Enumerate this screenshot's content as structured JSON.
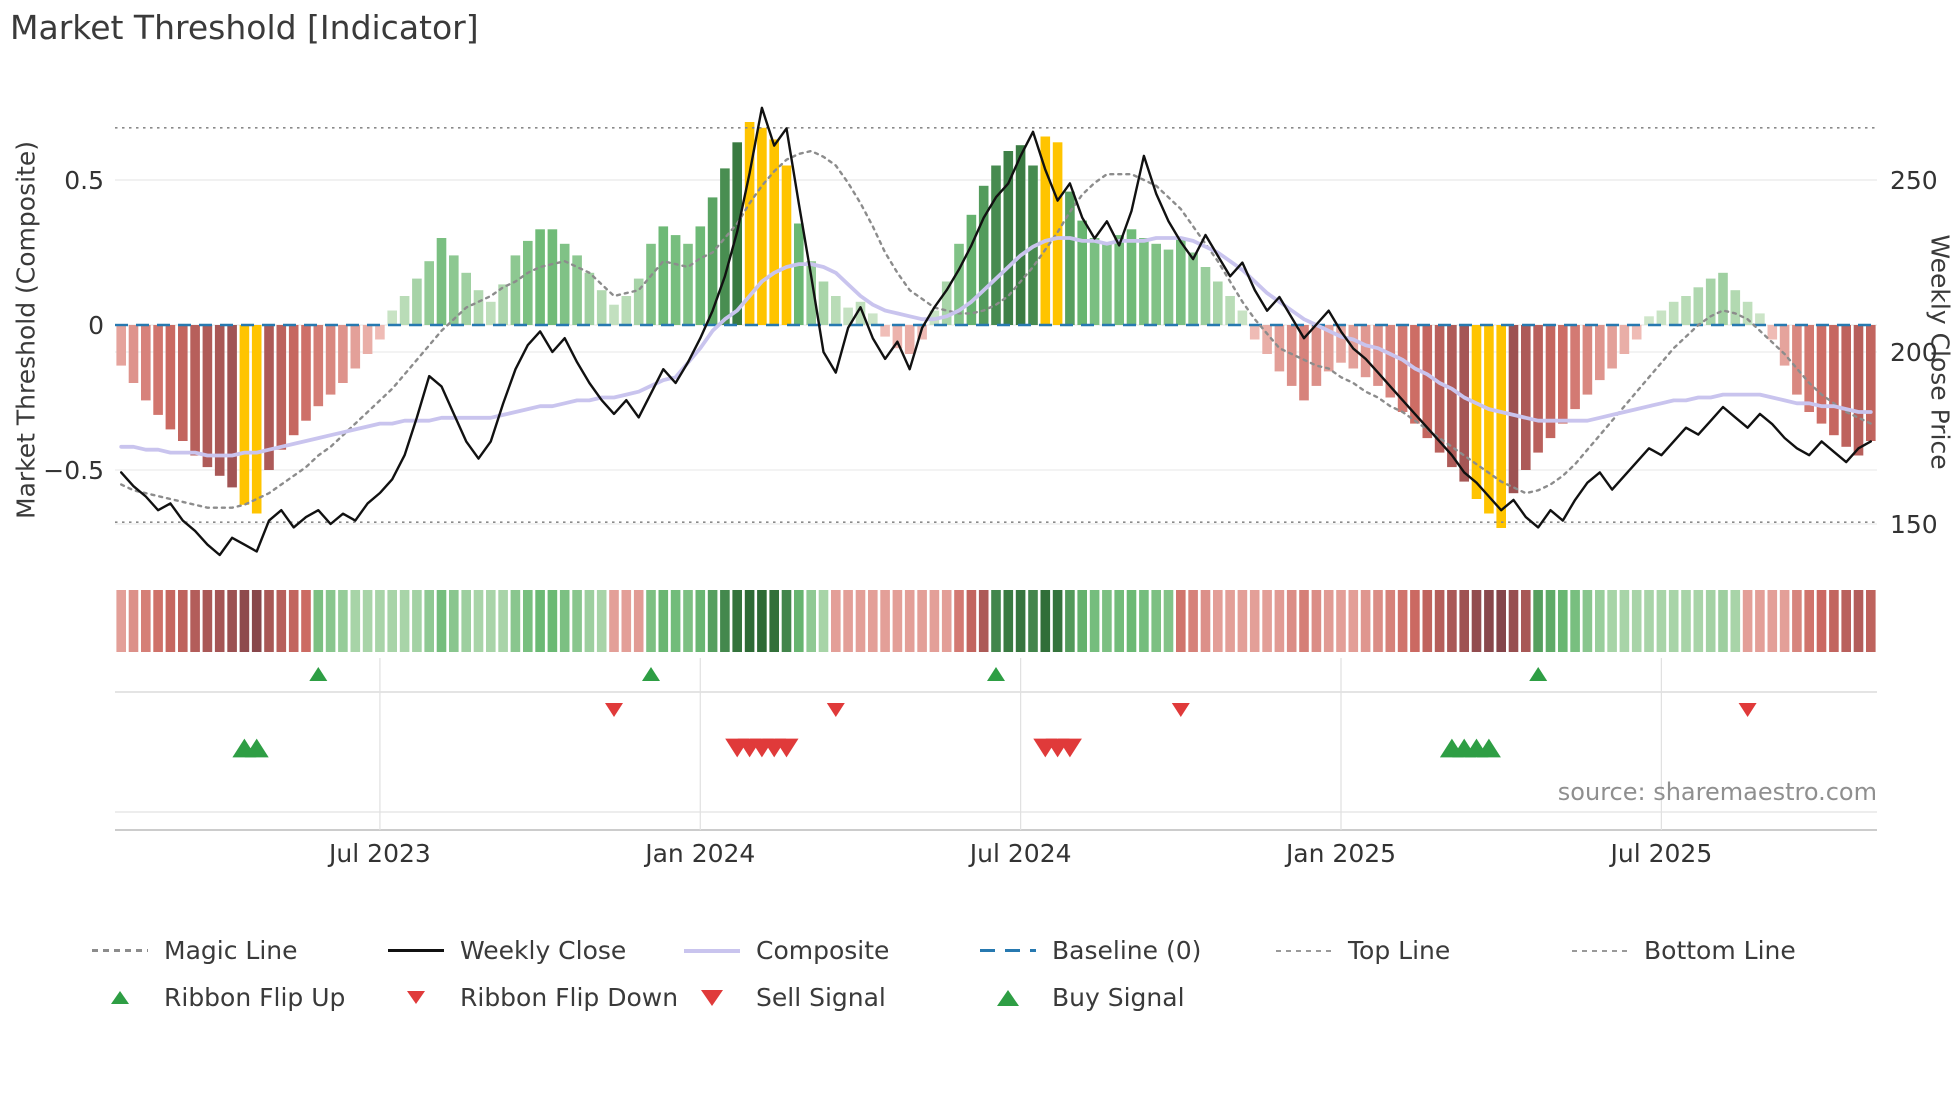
{
  "title": "Market Threshold [Indicator]",
  "source": "source: sharemaestro.com",
  "colors": {
    "bar_green_light": "#d8ead2",
    "bar_green_mid": "#6ab873",
    "bar_green_dark": "#2d6a35",
    "bar_red_light": "#f5c9c3",
    "bar_red_mid": "#cc6a62",
    "bar_red_dark": "#84454a",
    "bar_highlight": "#ffc400",
    "weekly_close": "#111111",
    "composite": "#c9c4ee",
    "magic": "#8c8c8c",
    "baseline": "#2779b0",
    "band_lines": "#8a8a8a",
    "signal_green": "#2e9e44",
    "signal_red": "#e03a3a",
    "grid": "#ececec",
    "axis_text": "#333333"
  },
  "chart_data": {
    "type": "bar",
    "subtype": "indicator histogram with line overlays, color ribbon and signal markers",
    "n_points": 143,
    "axes": {
      "left_title": "Market Threshold (Composite)",
      "right_title": "Weekly Close Price",
      "left_ticks": [
        {
          "label": "0.5",
          "value": 0.5
        },
        {
          "label": "0",
          "value": 0
        },
        {
          "label": "−0.5",
          "value": -0.5
        }
      ],
      "right_ticks": [
        {
          "label": "250",
          "value": 250
        },
        {
          "label": "200",
          "value": 200
        },
        {
          "label": "150",
          "value": 150
        }
      ],
      "x_ticks": [
        {
          "label": "Jul 2023",
          "index": 21
        },
        {
          "label": "Jan 2024",
          "index": 47
        },
        {
          "label": "Jul 2024",
          "index": 73
        },
        {
          "label": "Jan 2025",
          "index": 99
        },
        {
          "label": "Jul 2025",
          "index": 125
        }
      ],
      "left_range": [
        -0.78,
        0.79
      ],
      "right_range": [
        140,
        272
      ]
    },
    "baseline": 0,
    "top_line": 0.68,
    "bottom_line": -0.68,
    "series": {
      "threshold": [
        -0.14,
        -0.2,
        -0.26,
        -0.31,
        -0.36,
        -0.4,
        -0.45,
        -0.49,
        -0.52,
        -0.56,
        -0.62,
        -0.65,
        -0.5,
        -0.43,
        -0.38,
        -0.33,
        -0.28,
        -0.24,
        -0.2,
        -0.15,
        -0.1,
        -0.05,
        0.05,
        0.1,
        0.16,
        0.22,
        0.3,
        0.24,
        0.18,
        0.12,
        0.08,
        0.14,
        0.24,
        0.29,
        0.33,
        0.33,
        0.28,
        0.24,
        0.18,
        0.12,
        0.07,
        0.1,
        0.16,
        0.28,
        0.34,
        0.31,
        0.28,
        0.34,
        0.44,
        0.54,
        0.63,
        0.7,
        0.68,
        0.64,
        0.55,
        0.35,
        0.22,
        0.15,
        0.1,
        0.06,
        0.08,
        0.04,
        -0.04,
        -0.08,
        -0.1,
        -0.05,
        0.05,
        0.15,
        0.28,
        0.38,
        0.48,
        0.55,
        0.6,
        0.62,
        0.55,
        0.65,
        0.63,
        0.46,
        0.36,
        0.3,
        0.28,
        0.31,
        0.33,
        0.3,
        0.28,
        0.26,
        0.3,
        0.25,
        0.2,
        0.15,
        0.1,
        0.05,
        -0.05,
        -0.1,
        -0.16,
        -0.21,
        -0.26,
        -0.21,
        -0.16,
        -0.13,
        -0.15,
        -0.18,
        -0.21,
        -0.25,
        -0.3,
        -0.34,
        -0.39,
        -0.44,
        -0.49,
        -0.54,
        -0.6,
        -0.65,
        -0.7,
        -0.58,
        -0.5,
        -0.44,
        -0.39,
        -0.34,
        -0.29,
        -0.24,
        -0.19,
        -0.15,
        -0.1,
        -0.05,
        0.03,
        0.05,
        0.08,
        0.1,
        0.13,
        0.16,
        0.18,
        0.12,
        0.08,
        0.04,
        -0.05,
        -0.14,
        -0.24,
        -0.3,
        -0.34,
        -0.38,
        -0.42,
        -0.45,
        -0.4
      ],
      "composite": [
        -0.42,
        -0.42,
        -0.43,
        -0.43,
        -0.44,
        -0.44,
        -0.44,
        -0.45,
        -0.45,
        -0.45,
        -0.44,
        -0.44,
        -0.43,
        -0.42,
        -0.41,
        -0.4,
        -0.39,
        -0.38,
        -0.37,
        -0.36,
        -0.35,
        -0.34,
        -0.34,
        -0.33,
        -0.33,
        -0.33,
        -0.32,
        -0.32,
        -0.32,
        -0.32,
        -0.32,
        -0.31,
        -0.3,
        -0.29,
        -0.28,
        -0.28,
        -0.27,
        -0.26,
        -0.26,
        -0.25,
        -0.25,
        -0.24,
        -0.23,
        -0.21,
        -0.19,
        -0.18,
        -0.13,
        -0.08,
        -0.02,
        0.02,
        0.05,
        0.1,
        0.15,
        0.18,
        0.2,
        0.21,
        0.21,
        0.2,
        0.18,
        0.14,
        0.1,
        0.07,
        0.05,
        0.04,
        0.03,
        0.02,
        0.02,
        0.03,
        0.05,
        0.08,
        0.12,
        0.16,
        0.2,
        0.24,
        0.27,
        0.29,
        0.3,
        0.3,
        0.29,
        0.29,
        0.28,
        0.29,
        0.29,
        0.29,
        0.3,
        0.3,
        0.3,
        0.29,
        0.27,
        0.25,
        0.22,
        0.19,
        0.15,
        0.11,
        0.08,
        0.05,
        0.02,
        0.0,
        -0.02,
        -0.04,
        -0.05,
        -0.07,
        -0.08,
        -0.1,
        -0.12,
        -0.15,
        -0.17,
        -0.2,
        -0.22,
        -0.25,
        -0.27,
        -0.29,
        -0.3,
        -0.31,
        -0.32,
        -0.33,
        -0.33,
        -0.33,
        -0.33,
        -0.33,
        -0.32,
        -0.31,
        -0.3,
        -0.29,
        -0.28,
        -0.27,
        -0.26,
        -0.26,
        -0.25,
        -0.25,
        -0.24,
        -0.24,
        -0.24,
        -0.24,
        -0.25,
        -0.26,
        -0.27,
        -0.27,
        -0.28,
        -0.28,
        -0.29,
        -0.3,
        -0.3
      ],
      "magic": [
        -0.55,
        -0.57,
        -0.58,
        -0.59,
        -0.6,
        -0.61,
        -0.62,
        -0.63,
        -0.63,
        -0.63,
        -0.62,
        -0.6,
        -0.58,
        -0.55,
        -0.52,
        -0.49,
        -0.45,
        -0.42,
        -0.38,
        -0.34,
        -0.3,
        -0.26,
        -0.22,
        -0.17,
        -0.12,
        -0.07,
        -0.02,
        0.02,
        0.06,
        0.08,
        0.1,
        0.13,
        0.15,
        0.18,
        0.2,
        0.21,
        0.22,
        0.2,
        0.18,
        0.14,
        0.1,
        0.11,
        0.12,
        0.17,
        0.22,
        0.21,
        0.2,
        0.23,
        0.25,
        0.3,
        0.35,
        0.42,
        0.48,
        0.53,
        0.57,
        0.59,
        0.6,
        0.58,
        0.55,
        0.49,
        0.42,
        0.34,
        0.25,
        0.18,
        0.12,
        0.09,
        0.06,
        0.05,
        0.04,
        0.04,
        0.05,
        0.07,
        0.1,
        0.15,
        0.2,
        0.26,
        0.32,
        0.39,
        0.45,
        0.49,
        0.52,
        0.52,
        0.52,
        0.5,
        0.48,
        0.44,
        0.4,
        0.34,
        0.28,
        0.22,
        0.15,
        0.08,
        0.02,
        -0.03,
        -0.08,
        -0.1,
        -0.12,
        -0.14,
        -0.15,
        -0.18,
        -0.2,
        -0.23,
        -0.25,
        -0.28,
        -0.3,
        -0.33,
        -0.36,
        -0.39,
        -0.42,
        -0.45,
        -0.48,
        -0.51,
        -0.54,
        -0.56,
        -0.58,
        -0.57,
        -0.55,
        -0.52,
        -0.48,
        -0.43,
        -0.38,
        -0.33,
        -0.28,
        -0.23,
        -0.18,
        -0.13,
        -0.08,
        -0.04,
        0.0,
        0.03,
        0.05,
        0.04,
        0.02,
        -0.02,
        -0.06,
        -0.1,
        -0.15,
        -0.2,
        -0.24,
        -0.27,
        -0.3,
        -0.32,
        -0.34
      ],
      "weekly_close": [
        165,
        161,
        158,
        154,
        156,
        151,
        148,
        144,
        141,
        146,
        144,
        142,
        151,
        154,
        149,
        152,
        154,
        150,
        153,
        151,
        156,
        159,
        163,
        170,
        181,
        193,
        190,
        182,
        174,
        169,
        174,
        185,
        195,
        202,
        206,
        200,
        204,
        197,
        191,
        186,
        182,
        186,
        181,
        188,
        195,
        191,
        197,
        204,
        212,
        222,
        235,
        252,
        271,
        260,
        265,
        243,
        222,
        200,
        194,
        207,
        213,
        204,
        198,
        203,
        195,
        207,
        213,
        218,
        224,
        231,
        239,
        245,
        249,
        257,
        264,
        253,
        244,
        249,
        239,
        233,
        238,
        231,
        241,
        257,
        246,
        238,
        232,
        227,
        234,
        228,
        222,
        226,
        218,
        212,
        216,
        210,
        204,
        208,
        212,
        206,
        201,
        198,
        194,
        190,
        186,
        182,
        178,
        174,
        170,
        165,
        162,
        158,
        154,
        157,
        152,
        149,
        154,
        151,
        157,
        162,
        165,
        160,
        164,
        168,
        172,
        170,
        174,
        178,
        176,
        180,
        184,
        181,
        178,
        182,
        179,
        175,
        172,
        170,
        174,
        171,
        168,
        172,
        174
      ]
    },
    "highlight_bar_indices": [
      10,
      11,
      51,
      52,
      53,
      54,
      75,
      76,
      110,
      111,
      112
    ],
    "signals": {
      "ribbon_flip_up_indices": [
        16,
        43,
        71,
        115
      ],
      "ribbon_flip_down_indices": [
        40,
        58,
        86,
        132
      ],
      "buy_signal_indices": [
        10,
        11,
        108,
        109,
        110,
        111
      ],
      "sell_signal_indices": [
        50,
        51,
        52,
        53,
        54,
        75,
        76,
        77
      ]
    },
    "ribbon_segments": [
      {
        "start": 0,
        "end": 15,
        "dir": "down"
      },
      {
        "start": 16,
        "end": 39,
        "dir": "up"
      },
      {
        "start": 40,
        "end": 42,
        "dir": "down"
      },
      {
        "start": 43,
        "end": 57,
        "dir": "up"
      },
      {
        "start": 58,
        "end": 70,
        "dir": "down"
      },
      {
        "start": 71,
        "end": 85,
        "dir": "up"
      },
      {
        "start": 86,
        "end": 114,
        "dir": "down"
      },
      {
        "start": 115,
        "end": 131,
        "dir": "up"
      },
      {
        "start": 132,
        "end": 142,
        "dir": "down"
      }
    ],
    "legend": {
      "row1": [
        {
          "label": "Magic Line"
        },
        {
          "label": "Weekly Close"
        },
        {
          "label": "Composite"
        },
        {
          "label": "Baseline (0)"
        },
        {
          "label": "Top Line"
        },
        {
          "label": "Bottom Line"
        }
      ],
      "row2": [
        {
          "label": "Ribbon Flip Up"
        },
        {
          "label": "Ribbon Flip Down"
        },
        {
          "label": "Sell Signal"
        },
        {
          "label": "Buy Signal"
        }
      ]
    }
  }
}
